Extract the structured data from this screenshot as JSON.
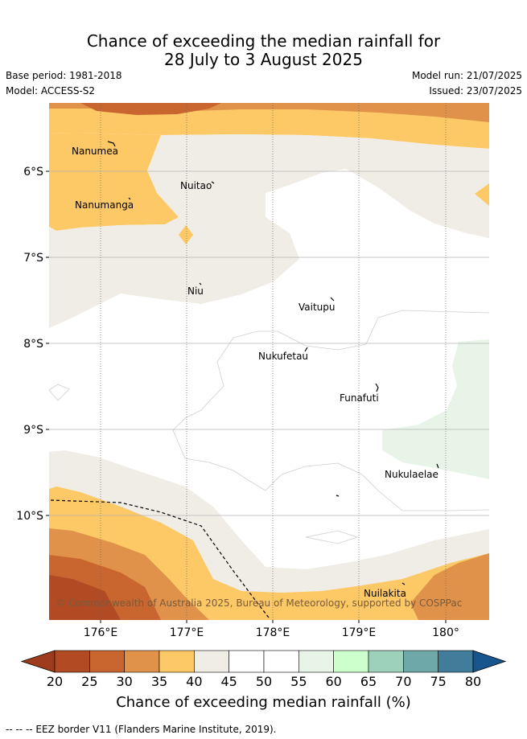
{
  "title_line1": "Chance of exceeding the median rainfall for",
  "title_line2": "28 July to 3 August 2025",
  "base_period": "Base period: 1981-2018",
  "model": "Model: ACCESS-S2",
  "model_run": "Model run: 21/07/2025",
  "issued": "Issued: 23/07/2025",
  "copyright": "© Commonwealth of Australia 2025, Bureau of Meteorology, supported by COSPPac",
  "lat_labels": [
    "6°S",
    "7°S",
    "8°S",
    "9°S",
    "10°S"
  ],
  "lon_labels": [
    "176°E",
    "177°E",
    "178°E",
    "179°E",
    "180°"
  ],
  "places": [
    {
      "name": "Nanumea"
    },
    {
      "name": "Nuitao"
    },
    {
      "name": "Nanumanga"
    },
    {
      "name": "Niu"
    },
    {
      "name": "Vaitupu"
    },
    {
      "name": "Nukufetau"
    },
    {
      "name": "Funafuti"
    },
    {
      "name": "Nukulaelae"
    },
    {
      "name": "Nuilakita"
    }
  ],
  "colorbar": {
    "ticks": [
      "20",
      "25",
      "30",
      "35",
      "40",
      "45",
      "50",
      "55",
      "60",
      "65",
      "70",
      "75",
      "80"
    ],
    "colors": [
      "#9e3b1c",
      "#b24a24",
      "#c9652f",
      "#e0924a",
      "#fdc966",
      "#f0ece6",
      "#ffffff",
      "#ffffff",
      "#e8f4e8",
      "#ccffcc",
      "#9ed1bc",
      "#6fa8a8",
      "#417d9a",
      "#16558e"
    ],
    "title": "Chance of exceeding median rainfall (%)"
  },
  "footer": "--  --  -- EEZ border V11 (Flanders Marine Institute, 2019)."
}
